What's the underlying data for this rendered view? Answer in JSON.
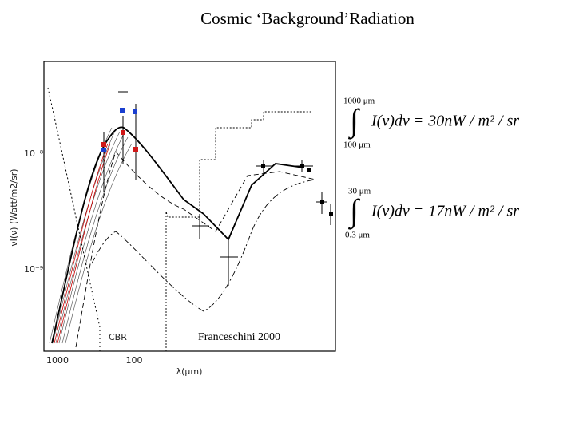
{
  "title": "Cosmic ‘Background’Radiation",
  "figure": {
    "y_axis_label": "νI(ν) (Watt/m2/sr)",
    "y_ticks": [
      "10⁻⁸",
      "10⁻⁹"
    ],
    "x_ticks": [
      "1000",
      "100"
    ],
    "x_axis_label": "λ(μm)",
    "labels": [
      "CBR",
      "Franceschini 2000"
    ]
  },
  "equations": [
    {
      "upper": "1000 μm",
      "lower": "100 μm",
      "integral": "∫",
      "body": "I(ν)dν = 30nW / m² / sr"
    },
    {
      "upper": "30 μm",
      "lower": "0.3 μm",
      "integral": "∫",
      "body": "I(ν)dν = 17nW / m² / sr"
    }
  ]
}
